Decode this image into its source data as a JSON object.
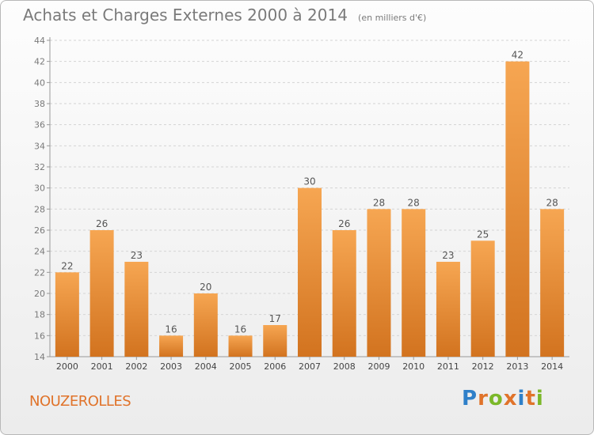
{
  "header": {
    "title": "Achats et Charges Externes 2000 à 2014",
    "subtitle": "(en milliers d'€)"
  },
  "footer": {
    "commune": "NOUZEROLLES",
    "logo": "Proxiti"
  },
  "colors": {
    "bar_top": "#f6a652",
    "bar_bottom": "#d2731f",
    "text": "#7a7a7a",
    "commune": "#e0732a",
    "logo_letters": [
      "#2f80c9",
      "#e0732a",
      "#7bb829",
      "#e0732a",
      "#2f80c9",
      "#e0732a",
      "#7bb829"
    ]
  },
  "chart_data": {
    "type": "bar",
    "title": "Achats et Charges Externes 2000 à 2014",
    "subtitle": "(en milliers d'€)",
    "categories": [
      "2000",
      "2001",
      "2002",
      "2003",
      "2004",
      "2005",
      "2006",
      "2007",
      "2008",
      "2009",
      "2010",
      "2011",
      "2012",
      "2013",
      "2014"
    ],
    "values": [
      22,
      26,
      23,
      16,
      20,
      16,
      17,
      30,
      26,
      28,
      28,
      23,
      25,
      42,
      28
    ],
    "ylim": [
      14,
      44
    ],
    "yticks": [
      14,
      16,
      18,
      20,
      22,
      24,
      26,
      28,
      30,
      32,
      34,
      36,
      38,
      40,
      42,
      44
    ],
    "grid": true,
    "data_labels": true
  }
}
